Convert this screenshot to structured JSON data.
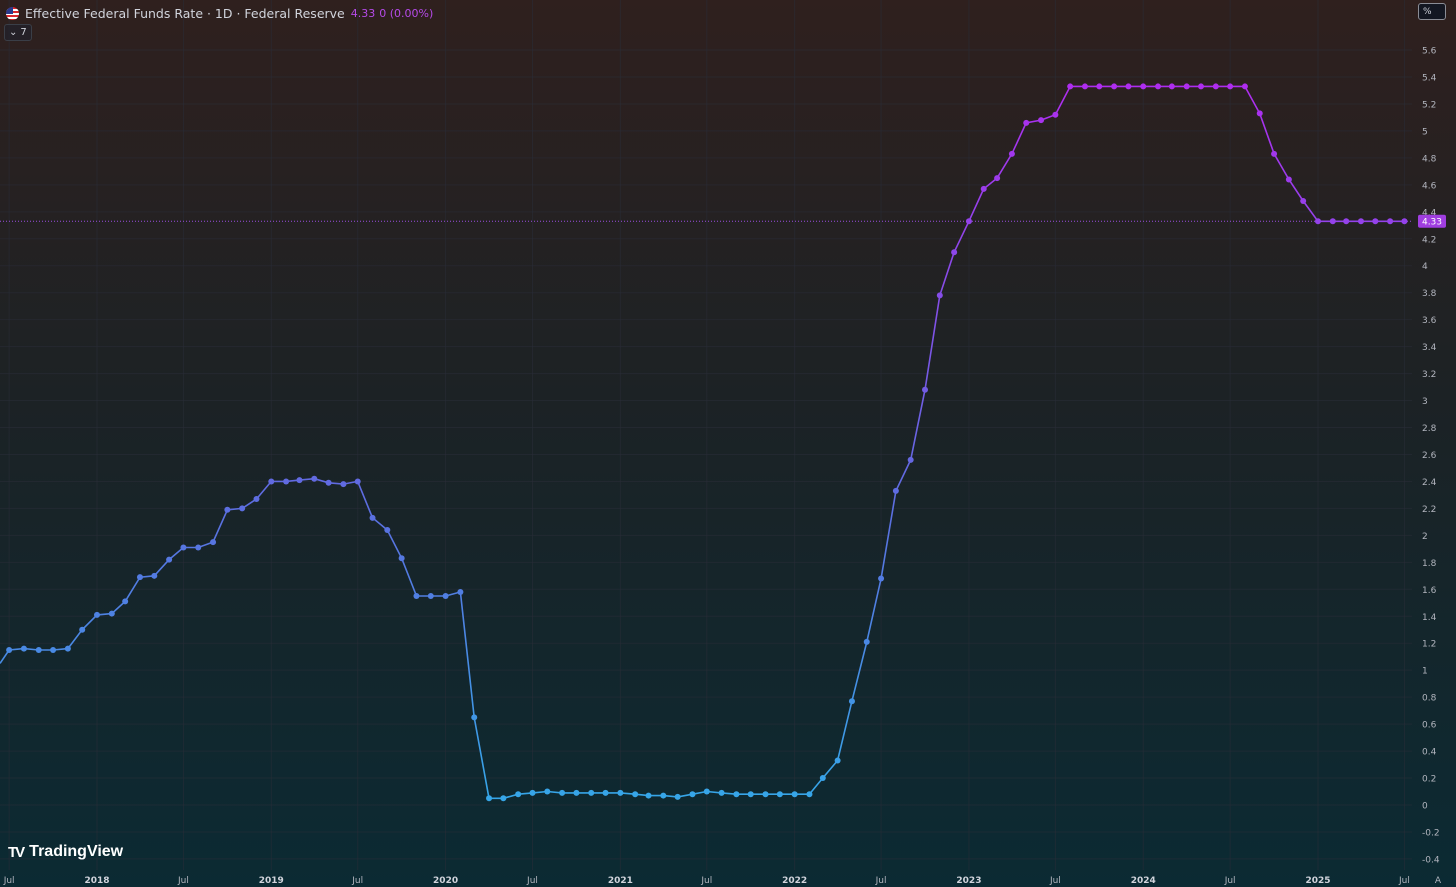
{
  "legend": {
    "title": "Effective Federal Funds Rate · 1D · Federal Reserve",
    "value": "4.33",
    "change": "0 (0.00%)",
    "collapse_count": "7",
    "flag_icon": "us-flag-icon"
  },
  "unit_label": "%",
  "brand": {
    "name": "TradingView",
    "logo_icon": "tradingview-logo-icon"
  },
  "colors": {
    "line_start": "#36a6e8",
    "line_mid": "#5b6fe0",
    "line_end": "#b02cf0",
    "last_value_badge": "#a03ee0",
    "grid": "#2a2e39",
    "axis_text": "#b2b5be"
  },
  "chart_data": {
    "type": "line",
    "title": "Effective Federal Funds Rate · 1D · Federal Reserve",
    "xlabel": "",
    "ylabel": "",
    "ylim": [
      -0.4,
      5.8
    ],
    "y_ticks": [
      -0.4,
      -0.2,
      0,
      0.2,
      0.4,
      0.6,
      0.8,
      1,
      1.2,
      1.4,
      1.6,
      1.8,
      2,
      2.2,
      2.4,
      2.6,
      2.8,
      3,
      3.2,
      3.4,
      3.6,
      3.8,
      4,
      4.2,
      4.4,
      4.6,
      4.8,
      5,
      5.2,
      5.4,
      5.6
    ],
    "x_ticks": [
      {
        "label": "Jul",
        "date": "2017-07-01"
      },
      {
        "label": "2018",
        "date": "2018-01-01"
      },
      {
        "label": "Jul",
        "date": "2018-07-01"
      },
      {
        "label": "2019",
        "date": "2019-01-01"
      },
      {
        "label": "Jul",
        "date": "2019-07-01"
      },
      {
        "label": "2020",
        "date": "2020-01-01"
      },
      {
        "label": "Jul",
        "date": "2020-07-01"
      },
      {
        "label": "2021",
        "date": "2021-01-01"
      },
      {
        "label": "Jul",
        "date": "2021-07-01"
      },
      {
        "label": "2022",
        "date": "2022-01-01"
      },
      {
        "label": "Jul",
        "date": "2022-07-01"
      },
      {
        "label": "2023",
        "date": "2023-01-01"
      },
      {
        "label": "Jul",
        "date": "2023-07-01"
      },
      {
        "label": "2024",
        "date": "2024-01-01"
      },
      {
        "label": "Jul",
        "date": "2024-07-01"
      },
      {
        "label": "2025",
        "date": "2025-01-01"
      },
      {
        "label": "Jul",
        "date": "2025-07-01"
      },
      {
        "label": "A",
        "date": "2025-08-01"
      }
    ],
    "x_range": [
      "2017-07-01",
      "2025-08-15"
    ],
    "last_value": 4.33,
    "last_value_label": "4.33",
    "grid": true,
    "series": [
      {
        "x": [
          "2017-07-01",
          "2017-08-01",
          "2017-09-01",
          "2017-10-01",
          "2017-11-01",
          "2017-12-01",
          "2018-01-01",
          "2018-02-01",
          "2018-03-01",
          "2018-04-01",
          "2018-05-01",
          "2018-06-01",
          "2018-07-01",
          "2018-08-01",
          "2018-09-01",
          "2018-10-01",
          "2018-11-01",
          "2018-12-01",
          "2019-01-01",
          "2019-02-01",
          "2019-03-01",
          "2019-04-01",
          "2019-05-01",
          "2019-06-01",
          "2019-07-01",
          "2019-08-01",
          "2019-09-01",
          "2019-10-01",
          "2019-11-01",
          "2019-12-01",
          "2020-01-01",
          "2020-02-01",
          "2020-03-01",
          "2020-04-01",
          "2020-05-01",
          "2020-06-01",
          "2020-07-01",
          "2020-08-01",
          "2020-09-01",
          "2020-10-01",
          "2020-11-01",
          "2020-12-01",
          "2021-01-01",
          "2021-02-01",
          "2021-03-01",
          "2021-04-01",
          "2021-05-01",
          "2021-06-01",
          "2021-07-01",
          "2021-08-01",
          "2021-09-01",
          "2021-10-01",
          "2021-11-01",
          "2021-12-01",
          "2022-01-01",
          "2022-02-01",
          "2022-03-01",
          "2022-04-01",
          "2022-05-01",
          "2022-06-01",
          "2022-07-01",
          "2022-08-01",
          "2022-09-01",
          "2022-10-01",
          "2022-11-01",
          "2022-12-01",
          "2023-01-01",
          "2023-02-01",
          "2023-03-01",
          "2023-04-01",
          "2023-05-01",
          "2023-06-01",
          "2023-07-01",
          "2023-08-01",
          "2023-09-01",
          "2023-10-01",
          "2023-11-01",
          "2023-12-01",
          "2024-01-01",
          "2024-02-01",
          "2024-03-01",
          "2024-04-01",
          "2024-05-01",
          "2024-06-01",
          "2024-07-01",
          "2024-08-01",
          "2024-09-01",
          "2024-10-01",
          "2024-11-01",
          "2024-12-01",
          "2025-01-01",
          "2025-02-01",
          "2025-03-01",
          "2025-04-01",
          "2025-05-01",
          "2025-06-01",
          "2025-07-01"
        ],
        "values": [
          1.15,
          1.16,
          1.15,
          1.15,
          1.16,
          1.3,
          1.41,
          1.42,
          1.51,
          1.69,
          1.7,
          1.82,
          1.91,
          1.91,
          1.95,
          2.19,
          2.2,
          2.27,
          2.4,
          2.4,
          2.41,
          2.42,
          2.39,
          2.38,
          2.4,
          2.13,
          2.04,
          1.83,
          1.55,
          1.55,
          1.55,
          1.58,
          0.65,
          0.05,
          0.05,
          0.08,
          0.09,
          0.1,
          0.09,
          0.09,
          0.09,
          0.09,
          0.09,
          0.08,
          0.07,
          0.07,
          0.06,
          0.08,
          0.1,
          0.09,
          0.08,
          0.08,
          0.08,
          0.08,
          0.08,
          0.08,
          0.2,
          0.33,
          0.77,
          1.21,
          1.68,
          2.33,
          2.56,
          3.08,
          3.78,
          4.1,
          4.33,
          4.57,
          4.65,
          4.83,
          5.06,
          5.08,
          5.12,
          5.33,
          5.33,
          5.33,
          5.33,
          5.33,
          5.33,
          5.33,
          5.33,
          5.33,
          5.33,
          5.33,
          5.33,
          5.33,
          5.13,
          4.83,
          4.64,
          4.48,
          4.33,
          4.33,
          4.33,
          4.33,
          4.33,
          4.33,
          4.33
        ]
      }
    ]
  }
}
